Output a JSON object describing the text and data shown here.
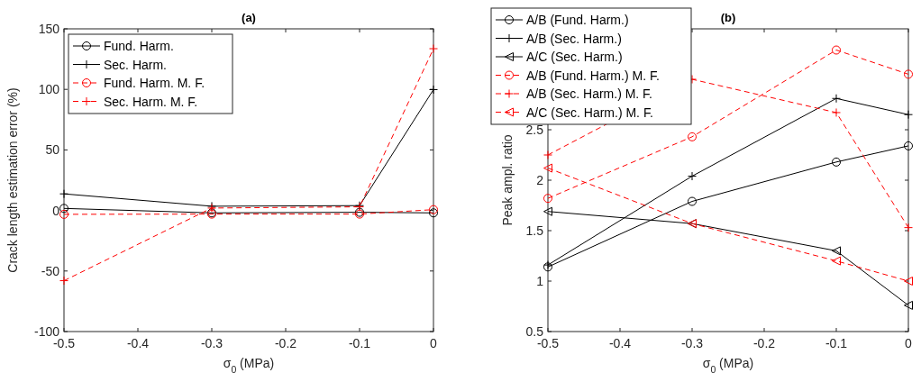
{
  "chart_data": [
    {
      "type": "line",
      "title": "(a)",
      "xlabel": "σ$_{0}$ (MPa)",
      "ylabel": "Crack length estimation error (%)",
      "x": [
        -0.5,
        -0.3,
        -0.1,
        0
      ],
      "xlim": [
        -0.5,
        0
      ],
      "xticks": [
        -0.5,
        -0.4,
        -0.3,
        -0.2,
        -0.1,
        0
      ],
      "ylim": [
        -100,
        150
      ],
      "yticks": [
        -100,
        -50,
        0,
        50,
        100,
        150
      ],
      "legend": "top left",
      "grid": false,
      "series": [
        {
          "name": "Fund. Harm.",
          "color": "#000000",
          "marker": "circle",
          "line_style": "solid",
          "values": [
            1.7,
            -2,
            -1.5,
            -2
          ]
        },
        {
          "name": "Sec. Harm.",
          "color": "#000000",
          "marker": "cross",
          "line_style": "solid",
          "values": [
            13.7,
            3.5,
            4,
            99.8
          ]
        },
        {
          "name": "Fund. Harm. M. F.",
          "color": "#ff0000",
          "marker": "circle",
          "line_style": "dashed",
          "values": [
            -3.2,
            -3,
            -3,
            0.7
          ]
        },
        {
          "name": "Sec. Harm. M. F.",
          "color": "#ff0000",
          "marker": "cross",
          "line_style": "dashed",
          "values": [
            -58,
            2,
            3,
            133.6
          ]
        }
      ]
    },
    {
      "type": "line",
      "title": "(b)",
      "xlabel": "σ$_{0}$ (MPa)",
      "ylabel": "Peak ampl. ratio",
      "x": [
        -0.5,
        -0.3,
        -0.1,
        0
      ],
      "xlim": [
        -0.5,
        0
      ],
      "xticks": [
        -0.5,
        -0.4,
        -0.3,
        -0.2,
        -0.1,
        0
      ],
      "ylim": [
        0.5,
        3.5
      ],
      "yticks": [
        0.5,
        1,
        1.5,
        2,
        2.5
      ],
      "legend": "top left",
      "grid": false,
      "series": [
        {
          "name": "A/B (Fund. Harm.)",
          "color": "#000000",
          "marker": "circle",
          "line_style": "solid",
          "values": [
            1.14,
            1.79,
            2.18,
            2.34
          ]
        },
        {
          "name": "A/B (Sec. Harm.)",
          "color": "#000000",
          "marker": "cross",
          "line_style": "solid",
          "values": [
            1.16,
            2.04,
            2.81,
            2.65
          ]
        },
        {
          "name": "A/C (Sec. Harm.)",
          "color": "#000000",
          "marker": "triangle",
          "line_style": "solid",
          "values": [
            1.69,
            1.57,
            1.3,
            0.76
          ]
        },
        {
          "name": "A/B (Fund. Harm.) M. F.",
          "color": "#ff0000",
          "marker": "circle",
          "line_style": "dashed",
          "values": [
            1.82,
            2.43,
            3.29,
            3.05
          ]
        },
        {
          "name": "A/B (Sec. Harm.) M. F.",
          "color": "#ff0000",
          "marker": "cross",
          "line_style": "dashed",
          "values": [
            2.25,
            3.0,
            2.67,
            1.53
          ]
        },
        {
          "name": "A/C (Sec. Harm.) M. F.",
          "color": "#ff0000",
          "marker": "triangle",
          "line_style": "dashed",
          "values": [
            2.12,
            1.57,
            1.2,
            1.0
          ]
        }
      ]
    }
  ]
}
